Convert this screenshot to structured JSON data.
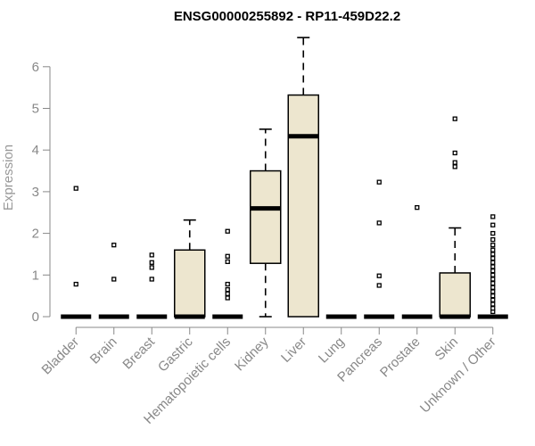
{
  "chart_data": {
    "type": "boxplot",
    "title": "ENSG00000255892 - RP11-459D22.2",
    "xlabel": "",
    "ylabel": "Expression",
    "ylim": [
      0,
      6.7
    ],
    "yticks": [
      0,
      1,
      2,
      3,
      4,
      5,
      6
    ],
    "grid": false,
    "legend": "none",
    "colors": {
      "box_fill": "#EDE6CF",
      "stroke": "#000000",
      "axis": "#888888"
    },
    "categories": [
      "Bladder",
      "Brain",
      "Breast",
      "Gastric",
      "Hematopoietic cells",
      "Kidney",
      "Liver",
      "Lung",
      "Pancreas",
      "Prostate",
      "Skin",
      "Unknown / Other"
    ],
    "boxes": [
      {
        "category": "Bladder",
        "min": 0,
        "q1": 0,
        "median": 0,
        "q3": 0,
        "max": 0,
        "outliers": [
          0.78,
          3.08
        ]
      },
      {
        "category": "Brain",
        "min": 0,
        "q1": 0,
        "median": 0,
        "q3": 0,
        "max": 0,
        "outliers": [
          0.9,
          1.72
        ]
      },
      {
        "category": "Breast",
        "min": 0,
        "q1": 0,
        "median": 0,
        "q3": 0,
        "max": 0,
        "outliers": [
          0.9,
          1.18,
          1.3,
          1.48
        ]
      },
      {
        "category": "Gastric",
        "min": 0,
        "q1": 0,
        "median": 0,
        "q3": 1.6,
        "max": 2.32,
        "outliers": []
      },
      {
        "category": "Hematopoietic cells",
        "min": 0,
        "q1": 0,
        "median": 0,
        "q3": 0,
        "max": 0,
        "outliers": [
          0.45,
          0.55,
          0.65,
          0.78,
          1.32,
          1.45,
          2.05
        ]
      },
      {
        "category": "Kidney",
        "min": 0,
        "q1": 1.28,
        "median": 2.6,
        "q3": 3.5,
        "max": 4.5,
        "outliers": []
      },
      {
        "category": "Liver",
        "min": 0,
        "q1": 0,
        "median": 4.33,
        "q3": 5.32,
        "max": 6.7,
        "outliers": []
      },
      {
        "category": "Lung",
        "min": 0,
        "q1": 0,
        "median": 0,
        "q3": 0,
        "max": 0,
        "outliers": []
      },
      {
        "category": "Pancreas",
        "min": 0,
        "q1": 0,
        "median": 0,
        "q3": 0,
        "max": 0,
        "outliers": [
          0.75,
          0.98,
          2.25,
          3.23
        ]
      },
      {
        "category": "Prostate",
        "min": 0,
        "q1": 0,
        "median": 0,
        "q3": 0,
        "max": 0,
        "outliers": [
          2.62
        ]
      },
      {
        "category": "Skin",
        "min": 0,
        "q1": 0,
        "median": 0,
        "q3": 1.05,
        "max": 2.13,
        "outliers": [
          3.6,
          3.7,
          3.93,
          4.75
        ]
      },
      {
        "category": "Unknown / Other",
        "min": 0,
        "q1": 0,
        "median": 0,
        "q3": 0,
        "max": 0,
        "outliers": [
          0.12,
          0.2,
          0.3,
          0.4,
          0.5,
          0.6,
          0.7,
          0.8,
          0.9,
          1.0,
          1.1,
          1.2,
          1.3,
          1.4,
          1.5,
          1.6,
          1.72,
          1.85,
          2.0,
          2.2,
          2.4
        ]
      }
    ]
  }
}
